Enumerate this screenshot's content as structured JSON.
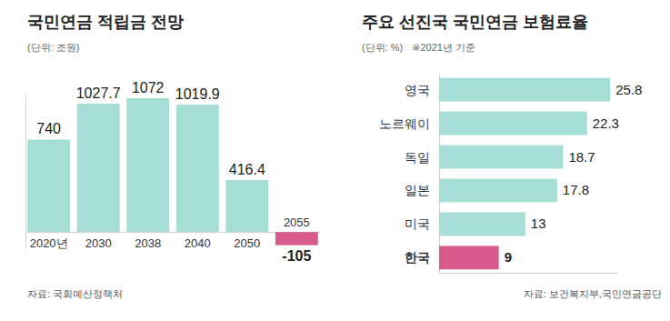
{
  "chart_data": [
    {
      "type": "bar",
      "title": "국민연금 적립금 전망",
      "subtitle": "(단위: 조원)",
      "source": "자료: 국회예산정책처",
      "categories": [
        "2020년",
        "2030",
        "2038",
        "2040",
        "2050",
        "2055"
      ],
      "values": [
        740,
        1027.7,
        1072,
        1019.9,
        416.4,
        -105
      ],
      "colors": [
        "#a6ddd5",
        "#a6ddd5",
        "#a6ddd5",
        "#a6ddd5",
        "#a6ddd5",
        "#d95b8c"
      ],
      "ylim": [
        -130,
        1100
      ],
      "yticks": [
        0
      ],
      "tick_labels": "x",
      "data_labels": true
    },
    {
      "type": "bar",
      "orientation": "horizontal",
      "title": "주요 선진국 국민연금 보험료율",
      "subtitle": "(단위: %)",
      "note": "※2021년 기준",
      "source": "자료: 보건복지부,국민연금공단",
      "categories": [
        "영국",
        "노르웨이",
        "독일",
        "일본",
        "미국",
        "한국"
      ],
      "values": [
        25.8,
        22.3,
        18.7,
        17.8,
        13,
        9
      ],
      "colors": [
        "#a6ddd5",
        "#a6ddd5",
        "#a6ddd5",
        "#a6ddd5",
        "#a6ddd5",
        "#d95b8c"
      ],
      "xlim": [
        0,
        27
      ],
      "xticks": [
        0
      ],
      "tick_labels": "y",
      "data_labels": true
    }
  ]
}
